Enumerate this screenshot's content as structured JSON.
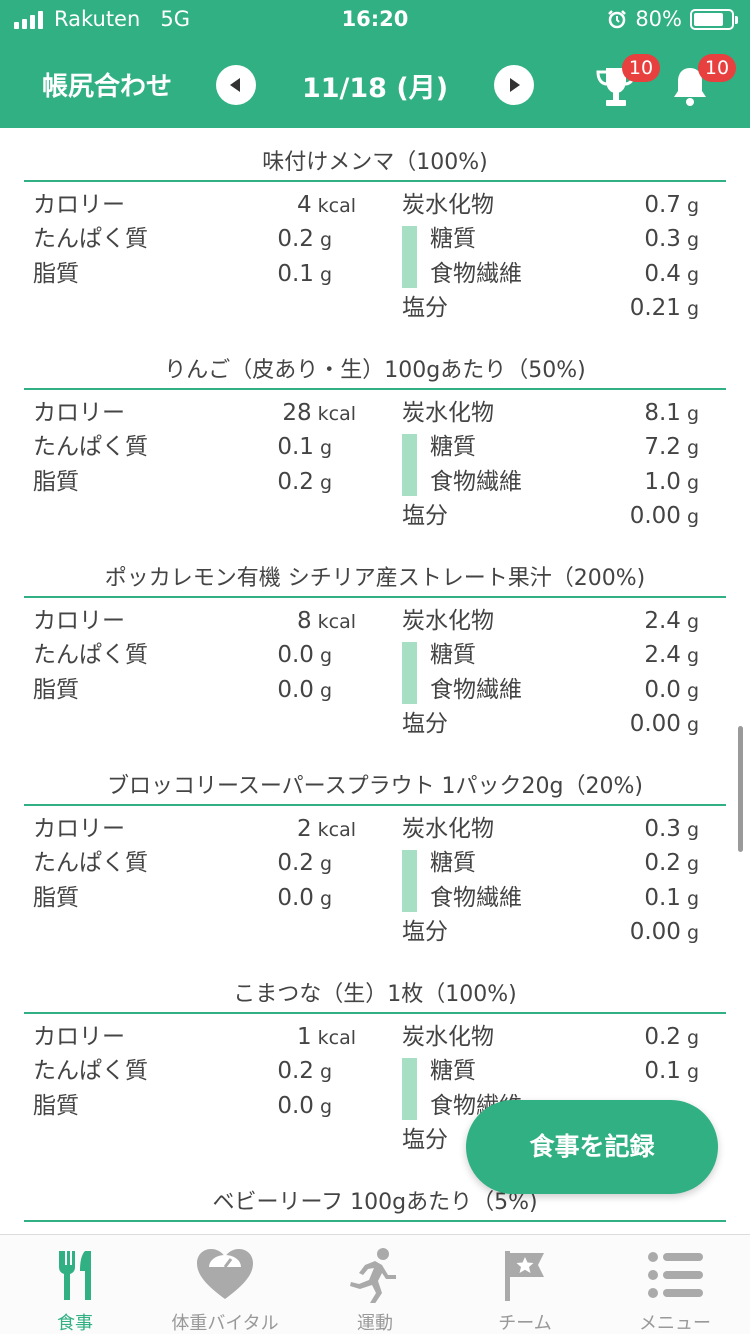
{
  "status_bar": {
    "carrier": "Rakuten",
    "network": "5G",
    "time": "16:20",
    "battery": "80%",
    "battery_level": 0.8
  },
  "header": {
    "title": "帳尻合わせ",
    "date": "11/18 (月)",
    "trophy_badge": "10",
    "bell_badge": "10"
  },
  "labels": {
    "calorie": "カロリー",
    "protein": "たんぱく質",
    "fat": "脂質",
    "carb": "炭水化物",
    "sugar": "糖質",
    "fiber": "食物繊維",
    "salt": "塩分",
    "kcal": "kcal",
    "g": "g"
  },
  "items": [
    {
      "name": "味付けメンマ（100%)",
      "calorie": "4",
      "protein": "0.2",
      "fat": "0.1",
      "carb": "0.7",
      "sugar": "0.3",
      "fiber": "0.4",
      "salt": "0.21"
    },
    {
      "name": "りんご（皮あり・生）100gあたり（50%)",
      "calorie": "28",
      "protein": "0.1",
      "fat": "0.2",
      "carb": "8.1",
      "sugar": "7.2",
      "fiber": "1.0",
      "salt": "0.00"
    },
    {
      "name": "ポッカレモン有機 シチリア産ストレート果汁（200%)",
      "calorie": "8",
      "protein": "0.0",
      "fat": "0.0",
      "carb": "2.4",
      "sugar": "2.4",
      "fiber": "0.0",
      "salt": "0.00"
    },
    {
      "name": "ブロッコリースーパースプラウト 1パック20g（20%)",
      "calorie": "2",
      "protein": "0.2",
      "fat": "0.0",
      "carb": "0.3",
      "sugar": "0.2",
      "fiber": "0.1",
      "salt": "0.00"
    },
    {
      "name": "こまつな（生）1枚（100%)",
      "calorie": "1",
      "protein": "0.2",
      "fat": "0.0",
      "carb": "0.2",
      "sugar": "0.1",
      "fiber": "",
      "salt": ""
    },
    {
      "name": "ベビーリーフ 100gあたり（5%)"
    }
  ],
  "fab_label": "食事を記録",
  "tabs": [
    {
      "label": "食事",
      "icon": "fork-knife-icon",
      "active": true
    },
    {
      "label": "体重バイタル",
      "icon": "heart-scale-icon",
      "active": false
    },
    {
      "label": "運動",
      "icon": "running-icon",
      "active": false
    },
    {
      "label": "チーム",
      "icon": "flag-icon",
      "active": false
    },
    {
      "label": "メニュー",
      "icon": "menu-list-icon",
      "active": false
    }
  ],
  "colors": {
    "brand": "#30b083",
    "badge": "#e83f3f",
    "bar": "#a7dfc4",
    "tab_inactive": "#999999"
  }
}
